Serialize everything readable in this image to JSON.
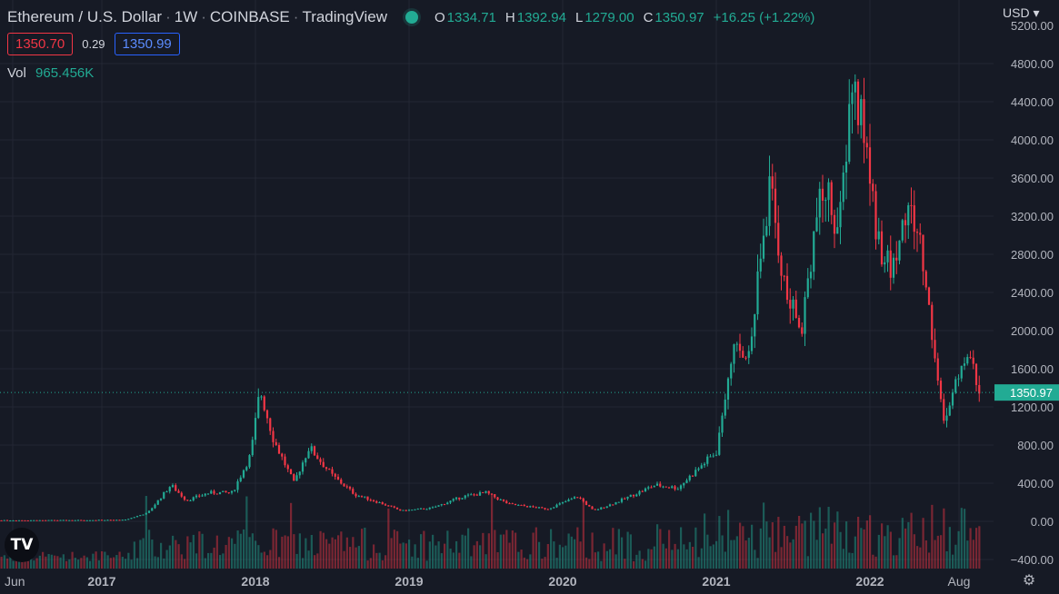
{
  "header": {
    "symbol": "Ethereum / U.S. Dollar",
    "interval": "1W",
    "exchange": "COINBASE",
    "source": "TradingView",
    "ohlc": {
      "o_label": "O",
      "o": "1334.71",
      "h_label": "H",
      "h": "1392.94",
      "l_label": "L",
      "l": "1279.00",
      "c_label": "C",
      "c": "1350.97",
      "change": "+16.25 (+1.22%)"
    },
    "bid": "1350.70",
    "spread": "0.29",
    "ask": "1350.99",
    "vol_label": "Vol",
    "vol_value": "965.456K",
    "currency": "USD",
    "currency_icon": "chevron-down-icon"
  },
  "colors": {
    "background": "#161a25",
    "up": "#22ab94",
    "down": "#f23645",
    "grid": "#232734",
    "last_price": "#22ab94"
  },
  "chart_data": {
    "type": "candlestick",
    "title": "Ethereum / U.S. Dollar",
    "ylim": [
      -400,
      5200
    ],
    "y_ticks": [
      -400,
      0,
      400,
      800,
      1200,
      1600,
      2000,
      2400,
      2800,
      3200,
      3600,
      4000,
      4400,
      4800
    ],
    "y_tick_labels": [
      "−400.00",
      "0.00",
      "400.00",
      "800.00",
      "1200.00",
      "1600.00",
      "2000.00",
      "2400.00",
      "2800.00",
      "3200.00",
      "3600.00",
      "4000.00",
      "4400.00",
      "4800.00"
    ],
    "top_partial_label": "5200.00",
    "x_ticks": [
      {
        "t": 2016.42,
        "label": "Jun"
      },
      {
        "t": 2017.0,
        "label": "2017"
      },
      {
        "t": 2018.0,
        "label": "2018"
      },
      {
        "t": 2019.0,
        "label": "2019"
      },
      {
        "t": 2020.0,
        "label": "2020"
      },
      {
        "t": 2021.0,
        "label": "2021"
      },
      {
        "t": 2022.0,
        "label": "2022"
      },
      {
        "t": 2022.58,
        "label": "Aug"
      }
    ],
    "last_price": 1350.97,
    "last_price_label": "1350.97",
    "grid": true,
    "price_key_points": [
      [
        2016.0,
        10
      ],
      [
        2016.75,
        12
      ],
      [
        2017.15,
        15
      ],
      [
        2017.3,
        90
      ],
      [
        2017.45,
        380
      ],
      [
        2017.55,
        220
      ],
      [
        2017.7,
        300
      ],
      [
        2017.85,
        300
      ],
      [
        2017.97,
        700
      ],
      [
        2018.03,
        1380
      ],
      [
        2018.12,
        850
      ],
      [
        2018.25,
        400
      ],
      [
        2018.35,
        780
      ],
      [
        2018.5,
        480
      ],
      [
        2018.65,
        280
      ],
      [
        2018.8,
        200
      ],
      [
        2018.95,
        110
      ],
      [
        2019.15,
        140
      ],
      [
        2019.35,
        260
      ],
      [
        2019.5,
        300
      ],
      [
        2019.65,
        180
      ],
      [
        2019.9,
        130
      ],
      [
        2020.1,
        260
      ],
      [
        2020.2,
        110
      ],
      [
        2020.35,
        200
      ],
      [
        2020.6,
        380
      ],
      [
        2020.75,
        350
      ],
      [
        2020.9,
        580
      ],
      [
        2021.0,
        730
      ],
      [
        2021.1,
        1800
      ],
      [
        2021.2,
        1700
      ],
      [
        2021.35,
        3500
      ],
      [
        2021.45,
        2400
      ],
      [
        2021.55,
        2000
      ],
      [
        2021.65,
        3200
      ],
      [
        2021.72,
        3500
      ],
      [
        2021.8,
        3000
      ],
      [
        2021.88,
        4600
      ],
      [
        2021.96,
        4100
      ],
      [
        2022.05,
        3000
      ],
      [
        2022.13,
        2600
      ],
      [
        2022.25,
        3300
      ],
      [
        2022.33,
        2900
      ],
      [
        2022.42,
        1800
      ],
      [
        2022.47,
        1100
      ],
      [
        2022.52,
        1200
      ],
      [
        2022.6,
        1700
      ],
      [
        2022.66,
        1650
      ],
      [
        2022.72,
        1350
      ]
    ],
    "x_range_years": [
      2016.0,
      2022.72
    ],
    "volume_scale": "overlaid histogram at bottom, same up/down colors"
  }
}
